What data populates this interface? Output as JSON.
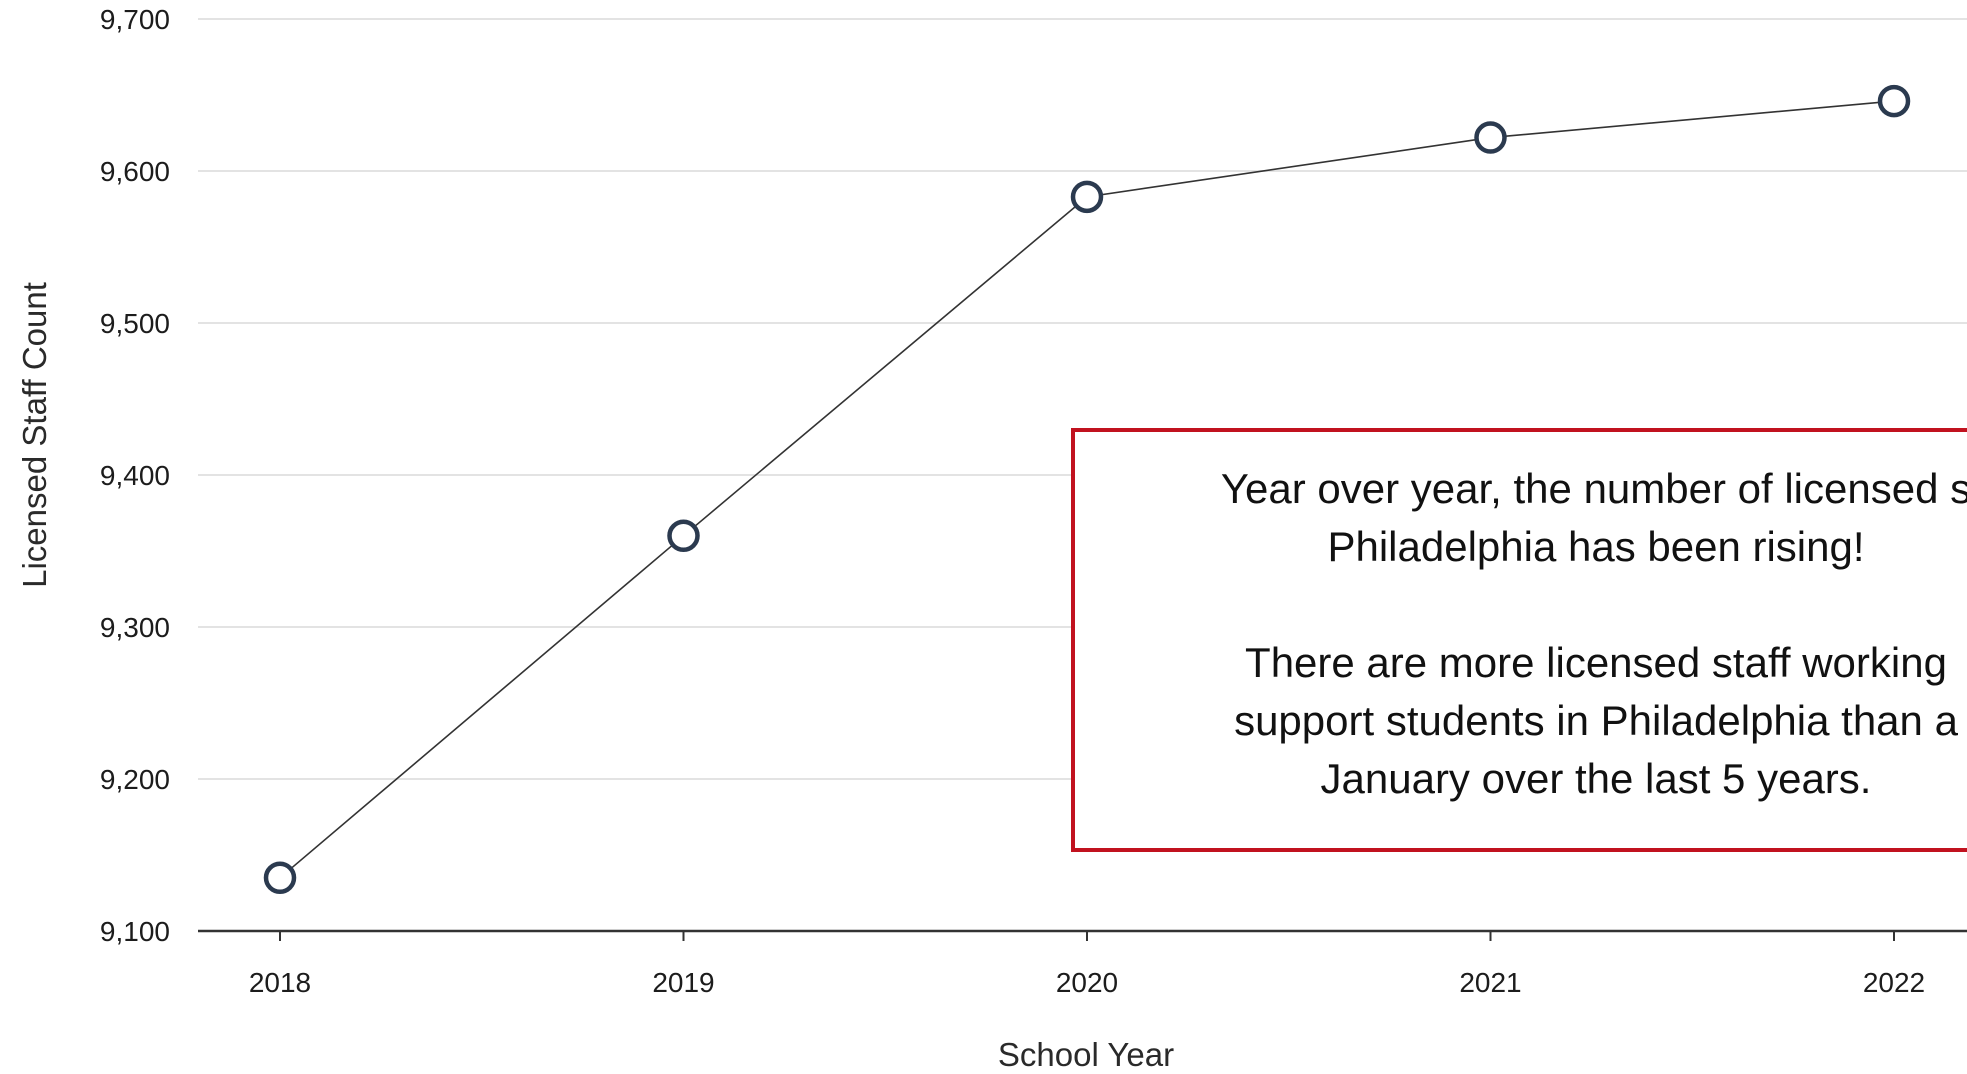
{
  "chart_data": {
    "type": "line",
    "title": "",
    "xlabel": "School Year",
    "ylabel": "Licensed Staff Count",
    "categories": [
      "2018",
      "2019",
      "2020",
      "2021",
      "2022"
    ],
    "series": [
      {
        "values": [
          9135,
          9360,
          9583,
          9622,
          9646
        ]
      }
    ],
    "ylim": [
      9100,
      9700
    ],
    "yticks": [
      9100,
      9200,
      9300,
      9400,
      9500,
      9600,
      9700
    ],
    "ytick_labels": [
      "9,100",
      "9,200",
      "9,300",
      "9,400",
      "9,500",
      "9,600",
      "9,700"
    ],
    "grid": "horizontal",
    "annotation": {
      "lines": [
        "Year over year, the number of licensed s",
        "Philadelphia has been rising!",
        "",
        "There are more licensed staff working",
        "support students in Philadelphia than a",
        "January over the last 5 years."
      ]
    }
  },
  "colors": {
    "line": "#333333",
    "marker_stroke": "#2b3a4f",
    "marker_fill": "#ffffff",
    "grid": "#e3e3e3",
    "axis": "#333333",
    "callout_border": "#c1121f"
  }
}
